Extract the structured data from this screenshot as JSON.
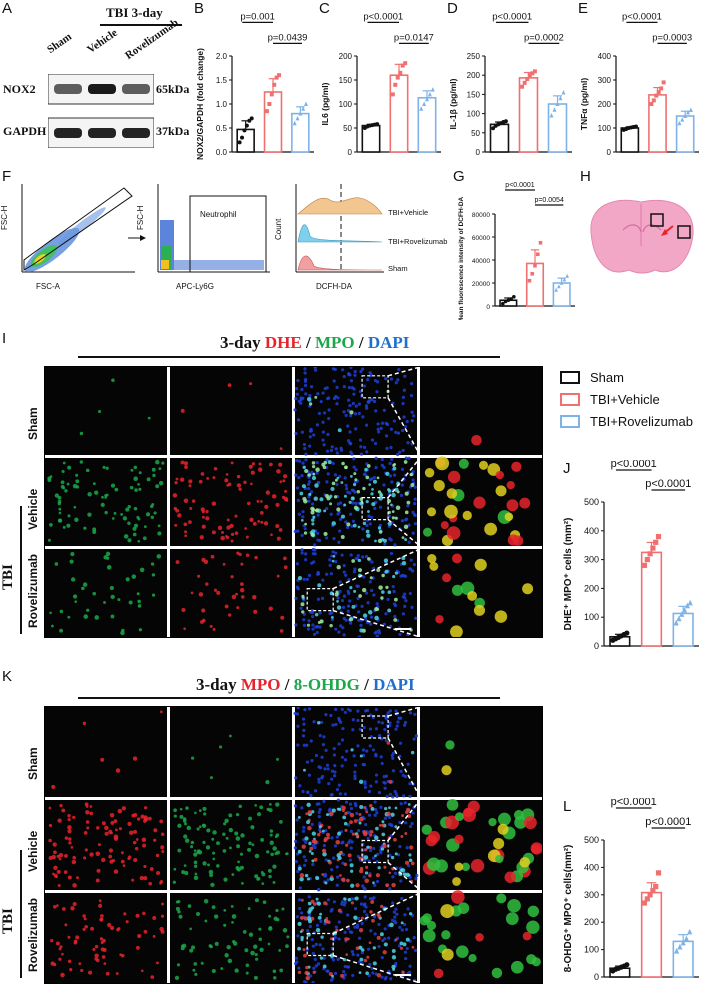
{
  "panels": [
    "A",
    "B",
    "C",
    "D",
    "E",
    "F",
    "G",
    "H",
    "I",
    "J",
    "K",
    "L"
  ],
  "colors": {
    "sham": "#111111",
    "vehicle": "#f07070",
    "roveli": "#7fb3e8",
    "dhe": "#e8232b",
    "mpo_green": "#1aa84a",
    "dapi": "#1f6fd0",
    "text": "#111111"
  },
  "panelA": {
    "header": "TBI 3-day",
    "lanes": [
      "Sham",
      "Vehicle",
      "Rovelizumab"
    ],
    "bands": [
      {
        "name": "NOX2",
        "size": "65kDa",
        "intensity": [
          0.55,
          0.95,
          0.55
        ]
      },
      {
        "name": "GAPDH",
        "size": "37kDa",
        "intensity": [
          0.9,
          0.9,
          0.9
        ]
      }
    ]
  },
  "legend": {
    "items": [
      "Sham",
      "TBI+Vehicle",
      "TBI+Rovelizumab"
    ]
  },
  "flow": {
    "p1_xlabel": "FSC-A",
    "p1_ylabel": "FSC-H",
    "p2_xlabel": "APC-Ly6G",
    "p2_ylabel": "FSC-H",
    "p2_gate": "Neutrophil",
    "p3_xlabel": "DCFH-DA",
    "p3_ylabel": "Count",
    "p3_tracks": [
      "TBI+Vehicle",
      "TBI+Rovelizumab",
      "Sham"
    ]
  },
  "micro_I": {
    "title_prefix": "3-day ",
    "t1": "DHE",
    "sep1": " / ",
    "t2": "MPO",
    "sep2": " / ",
    "t3": "DAPI",
    "rows": [
      "Sham",
      "Vehicle",
      "Rovelizumab"
    ],
    "group": "TBI"
  },
  "micro_K": {
    "title_prefix": "3-day ",
    "t1": "MPO",
    "sep1": " / ",
    "t2": "8-OHDG",
    "sep2": " / ",
    "t3": "DAPI",
    "rows": [
      "Sham",
      "Vehicle",
      "Rovelizumab"
    ],
    "group": "TBI"
  },
  "chart_data": [
    {
      "panel": "B",
      "type": "bar",
      "ylabel": "NOX2/GAPDH (fold change)",
      "ylim": [
        0,
        2.0
      ],
      "yticks": [
        "0.0",
        "0.5",
        "1.0",
        "1.5",
        "2.0"
      ],
      "categories": [
        "Sham",
        "TBI+Vehicle",
        "TBI+Rovelizumab"
      ],
      "values": [
        0.47,
        1.25,
        0.8
      ],
      "points": [
        [
          0.2,
          0.3,
          0.45,
          0.55,
          0.65,
          0.7
        ],
        [
          0.85,
          1.0,
          1.2,
          1.4,
          1.55,
          1.6
        ],
        [
          0.6,
          0.7,
          0.8,
          0.9,
          1.0
        ]
      ],
      "sig": [
        {
          "from": 0,
          "to": 1,
          "label": "p=0.001"
        },
        {
          "from": 1,
          "to": 2,
          "label": "p=0.0439"
        }
      ]
    },
    {
      "panel": "C",
      "type": "bar",
      "ylabel": "IL6 (pg/ml)",
      "ylim": [
        0,
        200
      ],
      "yticks": [
        "0",
        "50",
        "100",
        "150",
        "200"
      ],
      "categories": [
        "Sham",
        "TBI+Vehicle",
        "TBI+Rovelizumab"
      ],
      "values": [
        55,
        160,
        113
      ],
      "points": [
        [
          50,
          53,
          55,
          56,
          57,
          58
        ],
        [
          120,
          140,
          155,
          165,
          180,
          185
        ],
        [
          90,
          100,
          110,
          120,
          130
        ]
      ],
      "sig": [
        {
          "from": 0,
          "to": 1,
          "label": "p<0.0001"
        },
        {
          "from": 1,
          "to": 2,
          "label": "p=0.0147"
        }
      ]
    },
    {
      "panel": "D",
      "type": "bar",
      "ylabel": "IL-1β (pg/ml)",
      "ylim": [
        0,
        250
      ],
      "yticks": [
        "0",
        "50",
        "100",
        "150",
        "200",
        "250"
      ],
      "categories": [
        "Sham",
        "TBI+Vehicle",
        "TBI+Rovelizumab"
      ],
      "values": [
        72,
        193,
        125
      ],
      "points": [
        [
          62,
          68,
          72,
          75,
          78,
          80
        ],
        [
          170,
          180,
          190,
          200,
          205,
          210
        ],
        [
          95,
          110,
          125,
          140,
          155
        ]
      ],
      "sig": [
        {
          "from": 0,
          "to": 1,
          "label": "p<0.0001"
        },
        {
          "from": 1,
          "to": 2,
          "label": "p=0.0002"
        }
      ]
    },
    {
      "panel": "E",
      "type": "bar",
      "ylabel": "TNFα (pg/ml)",
      "ylim": [
        0,
        400
      ],
      "yticks": [
        "0",
        "100",
        "200",
        "300",
        "400"
      ],
      "categories": [
        "Sham",
        "TBI+Vehicle",
        "TBI+Rovelizumab"
      ],
      "values": [
        100,
        238,
        150
      ],
      "points": [
        [
          92,
          96,
          100,
          102,
          104,
          106
        ],
        [
          200,
          215,
          235,
          250,
          265,
          290
        ],
        [
          120,
          135,
          150,
          165,
          175
        ]
      ],
      "sig": [
        {
          "from": 0,
          "to": 1,
          "label": "p<0.0001"
        },
        {
          "from": 1,
          "to": 2,
          "label": "p=0.0003"
        }
      ]
    },
    {
      "panel": "G",
      "type": "bar",
      "ylabel": "Mean fluorescence intensity of DCFH-DA",
      "ylim": [
        0,
        80000
      ],
      "yticks": [
        "0",
        "20000",
        "40000",
        "60000",
        "80000"
      ],
      "categories": [
        "Sham",
        "TBI+Vehicle",
        "TBI+Rovelizumab"
      ],
      "values": [
        5000,
        37000,
        20000
      ],
      "points": [
        [
          2000,
          4000,
          5000,
          6000,
          8000
        ],
        [
          22000,
          28000,
          35000,
          45000,
          55000
        ],
        [
          14000,
          17000,
          20000,
          23000,
          26000
        ]
      ],
      "sig": [
        {
          "from": 0,
          "to": 1,
          "label": "p<0.0001"
        },
        {
          "from": 1,
          "to": 2,
          "label": "p=0.0054"
        }
      ]
    },
    {
      "panel": "J",
      "type": "bar",
      "ylabel": "DHE⁺ MPO⁺ cells (mm²)",
      "ylim": [
        0,
        500
      ],
      "yticks": [
        "0",
        "100",
        "200",
        "300",
        "400",
        "500"
      ],
      "categories": [
        "Sham",
        "TBI+Vehicle",
        "TBI+Rovelizumab"
      ],
      "values": [
        32,
        325,
        113
      ],
      "points": [
        [
          20,
          25,
          30,
          35,
          40,
          45
        ],
        [
          280,
          300,
          320,
          340,
          360,
          380
        ],
        [
          80,
          95,
          110,
          125,
          140,
          150
        ]
      ],
      "sig": [
        {
          "from": 0,
          "to": 1,
          "label": "p<0.0001"
        },
        {
          "from": 1,
          "to": 2,
          "label": "p<0.0001"
        }
      ]
    },
    {
      "panel": "L",
      "type": "bar",
      "ylabel": "8-OHDG⁺ MPO⁺ cells(mm²)",
      "ylim": [
        0,
        500
      ],
      "yticks": [
        "0",
        "100",
        "200",
        "300",
        "400",
        "500"
      ],
      "categories": [
        "Sham",
        "TBI+Vehicle",
        "TBI+Rovelizumab"
      ],
      "values": [
        32,
        308,
        130
      ],
      "points": [
        [
          22,
          28,
          32,
          36,
          40,
          45
        ],
        [
          270,
          285,
          300,
          315,
          330,
          380
        ],
        [
          95,
          110,
          125,
          140,
          165
        ]
      ],
      "sig": [
        {
          "from": 0,
          "to": 1,
          "label": "p<0.0001"
        },
        {
          "from": 1,
          "to": 2,
          "label": "p<0.0001"
        }
      ]
    }
  ]
}
